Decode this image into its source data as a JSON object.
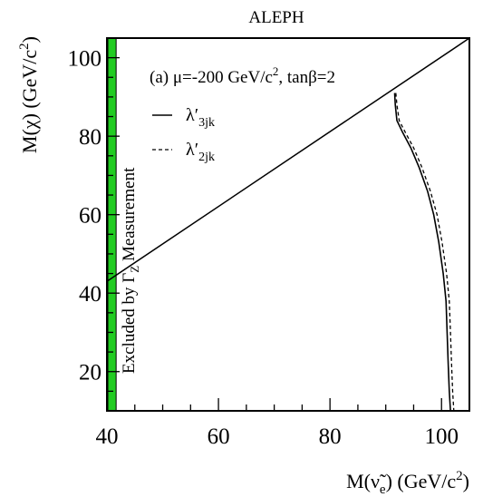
{
  "chart_data": {
    "type": "line",
    "title": "ALEPH",
    "annotation_prefix": "(a) μ=-200 GeV/c",
    "annotation_suffix": ", tanβ=2",
    "annotation_sup": "2",
    "band_label_prefix": "Excluded by Γ",
    "band_label_sub": "Z",
    "band_label_suffix": " Measurement",
    "xlabel_prefix": "M(ν̃",
    "xlabel_sub": "e",
    "xlabel_suffix": ") (GeV/c",
    "xlabel_sup": "2",
    "xlabel_end": ")",
    "ylabel_prefix": "M(χ) (GeV/c",
    "ylabel_sup": "2",
    "ylabel_end": ")",
    "xlim": [
      40,
      105
    ],
    "ylim": [
      10,
      105
    ],
    "xticks": [
      40,
      60,
      80,
      100
    ],
    "yticks": [
      20,
      40,
      60,
      80,
      100
    ],
    "excluded_band": {
      "x": [
        40,
        41
      ],
      "color": "#22cc22"
    },
    "diagonal": [
      [
        40,
        43
      ],
      [
        105,
        105
      ]
    ],
    "series": [
      {
        "name": "λ′",
        "name_sub": "3jk",
        "style": "solid",
        "x": [
          91.6,
          91.7,
          92.0,
          93.0,
          94.5,
          96.0,
          97.5,
          98.6,
          99.5,
          100.3,
          100.8,
          101.0,
          101.2,
          101.4,
          101.6
        ],
        "y": [
          91,
          88,
          84,
          81,
          77,
          72,
          66,
          60,
          53,
          45,
          38,
          30,
          22,
          15,
          10
        ]
      },
      {
        "name": "λ′",
        "name_sub": "2jk",
        "style": "dashed",
        "x": [
          91.8,
          92.0,
          92.4,
          93.5,
          95.0,
          96.5,
          98.0,
          99.2,
          100.1,
          100.9,
          101.4,
          101.6,
          101.8,
          102.0,
          102.2
        ],
        "y": [
          91,
          88,
          84,
          81,
          77,
          72,
          66,
          60,
          53,
          45,
          38,
          30,
          22,
          15,
          10
        ]
      }
    ]
  }
}
